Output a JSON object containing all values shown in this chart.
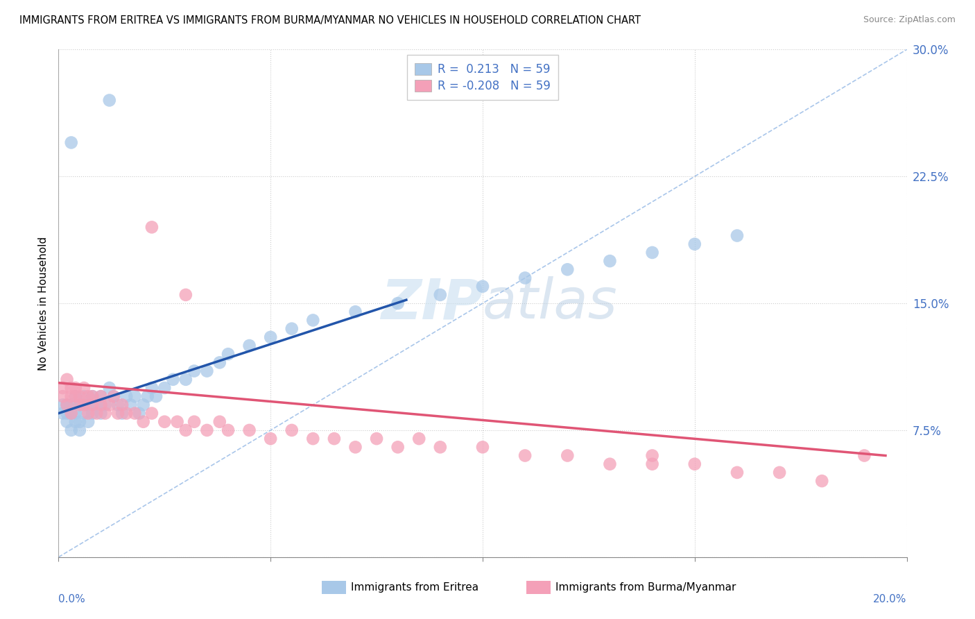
{
  "title": "IMMIGRANTS FROM ERITREA VS IMMIGRANTS FROM BURMA/MYANMAR NO VEHICLES IN HOUSEHOLD CORRELATION CHART",
  "source": "Source: ZipAtlas.com",
  "ylabel_label": "No Vehicles in Household",
  "legend_label1": "Immigrants from Eritrea",
  "legend_label2": "Immigrants from Burma/Myanmar",
  "R1": 0.213,
  "R2": -0.208,
  "N": 59,
  "color_eritrea": "#a8c8e8",
  "color_burma": "#f4a0b8",
  "color_trend_eritrea": "#2255aa",
  "color_trend_burma": "#e05575",
  "color_ref_line": "#a0c0e8",
  "xmin": 0.0,
  "xmax": 0.2,
  "ymin": 0.0,
  "ymax": 0.3,
  "yticks": [
    0.0,
    0.075,
    0.15,
    0.225,
    0.3
  ],
  "ytick_labels": [
    "",
    "7.5%",
    "15.0%",
    "22.5%",
    "30.0%"
  ],
  "xtick_left_label": "0.0%",
  "xtick_right_label": "20.0%",
  "eritrea_trend_x0": 0.0,
  "eritrea_trend_y0": 0.085,
  "eritrea_trend_x1": 0.082,
  "eritrea_trend_y1": 0.152,
  "burma_trend_x0": 0.0,
  "burma_trend_y0": 0.103,
  "burma_trend_x1": 0.195,
  "burma_trend_y1": 0.06
}
